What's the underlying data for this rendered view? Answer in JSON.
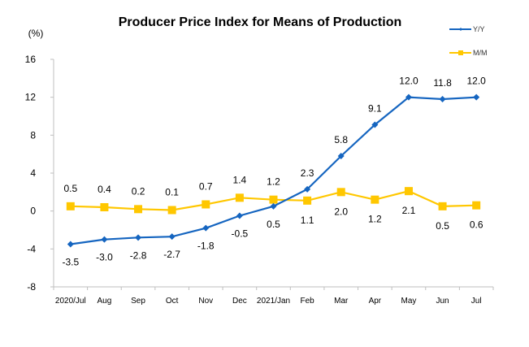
{
  "chart_data": {
    "type": "line",
    "title": "Producer Price Index for Means of Production",
    "ylabel": "(%)",
    "xlabel": "",
    "ylim": [
      -8,
      16
    ],
    "yticks": [
      16,
      12,
      8,
      4,
      0,
      -4,
      -8
    ],
    "grid": false,
    "legend_position": "top-right",
    "categories": [
      "2020/Jul",
      "Aug",
      "Sep",
      "Oct",
      "Nov",
      "Dec",
      "2021/Jan",
      "Feb",
      "Mar",
      "Apr",
      "May",
      "Jun",
      "Jul"
    ],
    "series": [
      {
        "name": "Y/Y",
        "color": "#1565C0",
        "marker": "diamond",
        "values": [
          -3.5,
          -3.0,
          -2.8,
          -2.7,
          -1.8,
          -0.5,
          0.5,
          2.3,
          5.8,
          9.1,
          12.0,
          11.8,
          12.0
        ],
        "labels": [
          "-3.5",
          "-3.0",
          "-2.8",
          "-2.7",
          "-1.8",
          "-0.5",
          "0.5",
          "2.3",
          "5.8",
          "9.1",
          "12.0",
          "11.8",
          "12.0"
        ],
        "label_side": [
          "below",
          "below",
          "below",
          "below",
          "below",
          "below",
          "below",
          "above",
          "above",
          "above",
          "above",
          "above",
          "above"
        ]
      },
      {
        "name": "M/M",
        "color": "#FFC700",
        "marker": "square",
        "values": [
          0.5,
          0.4,
          0.2,
          0.1,
          0.7,
          1.4,
          1.2,
          1.1,
          2.0,
          1.2,
          2.1,
          0.5,
          0.6
        ],
        "labels": [
          "0.5",
          "0.4",
          "0.2",
          "0.1",
          "0.7",
          "1.4",
          "1.2",
          "1.1",
          "2.0",
          "1.2",
          "2.1",
          "0.5",
          "0.6"
        ],
        "label_side": [
          "above",
          "above",
          "above",
          "above",
          "above",
          "above",
          "above",
          "below",
          "below",
          "below",
          "below",
          "below",
          "below"
        ]
      }
    ]
  }
}
